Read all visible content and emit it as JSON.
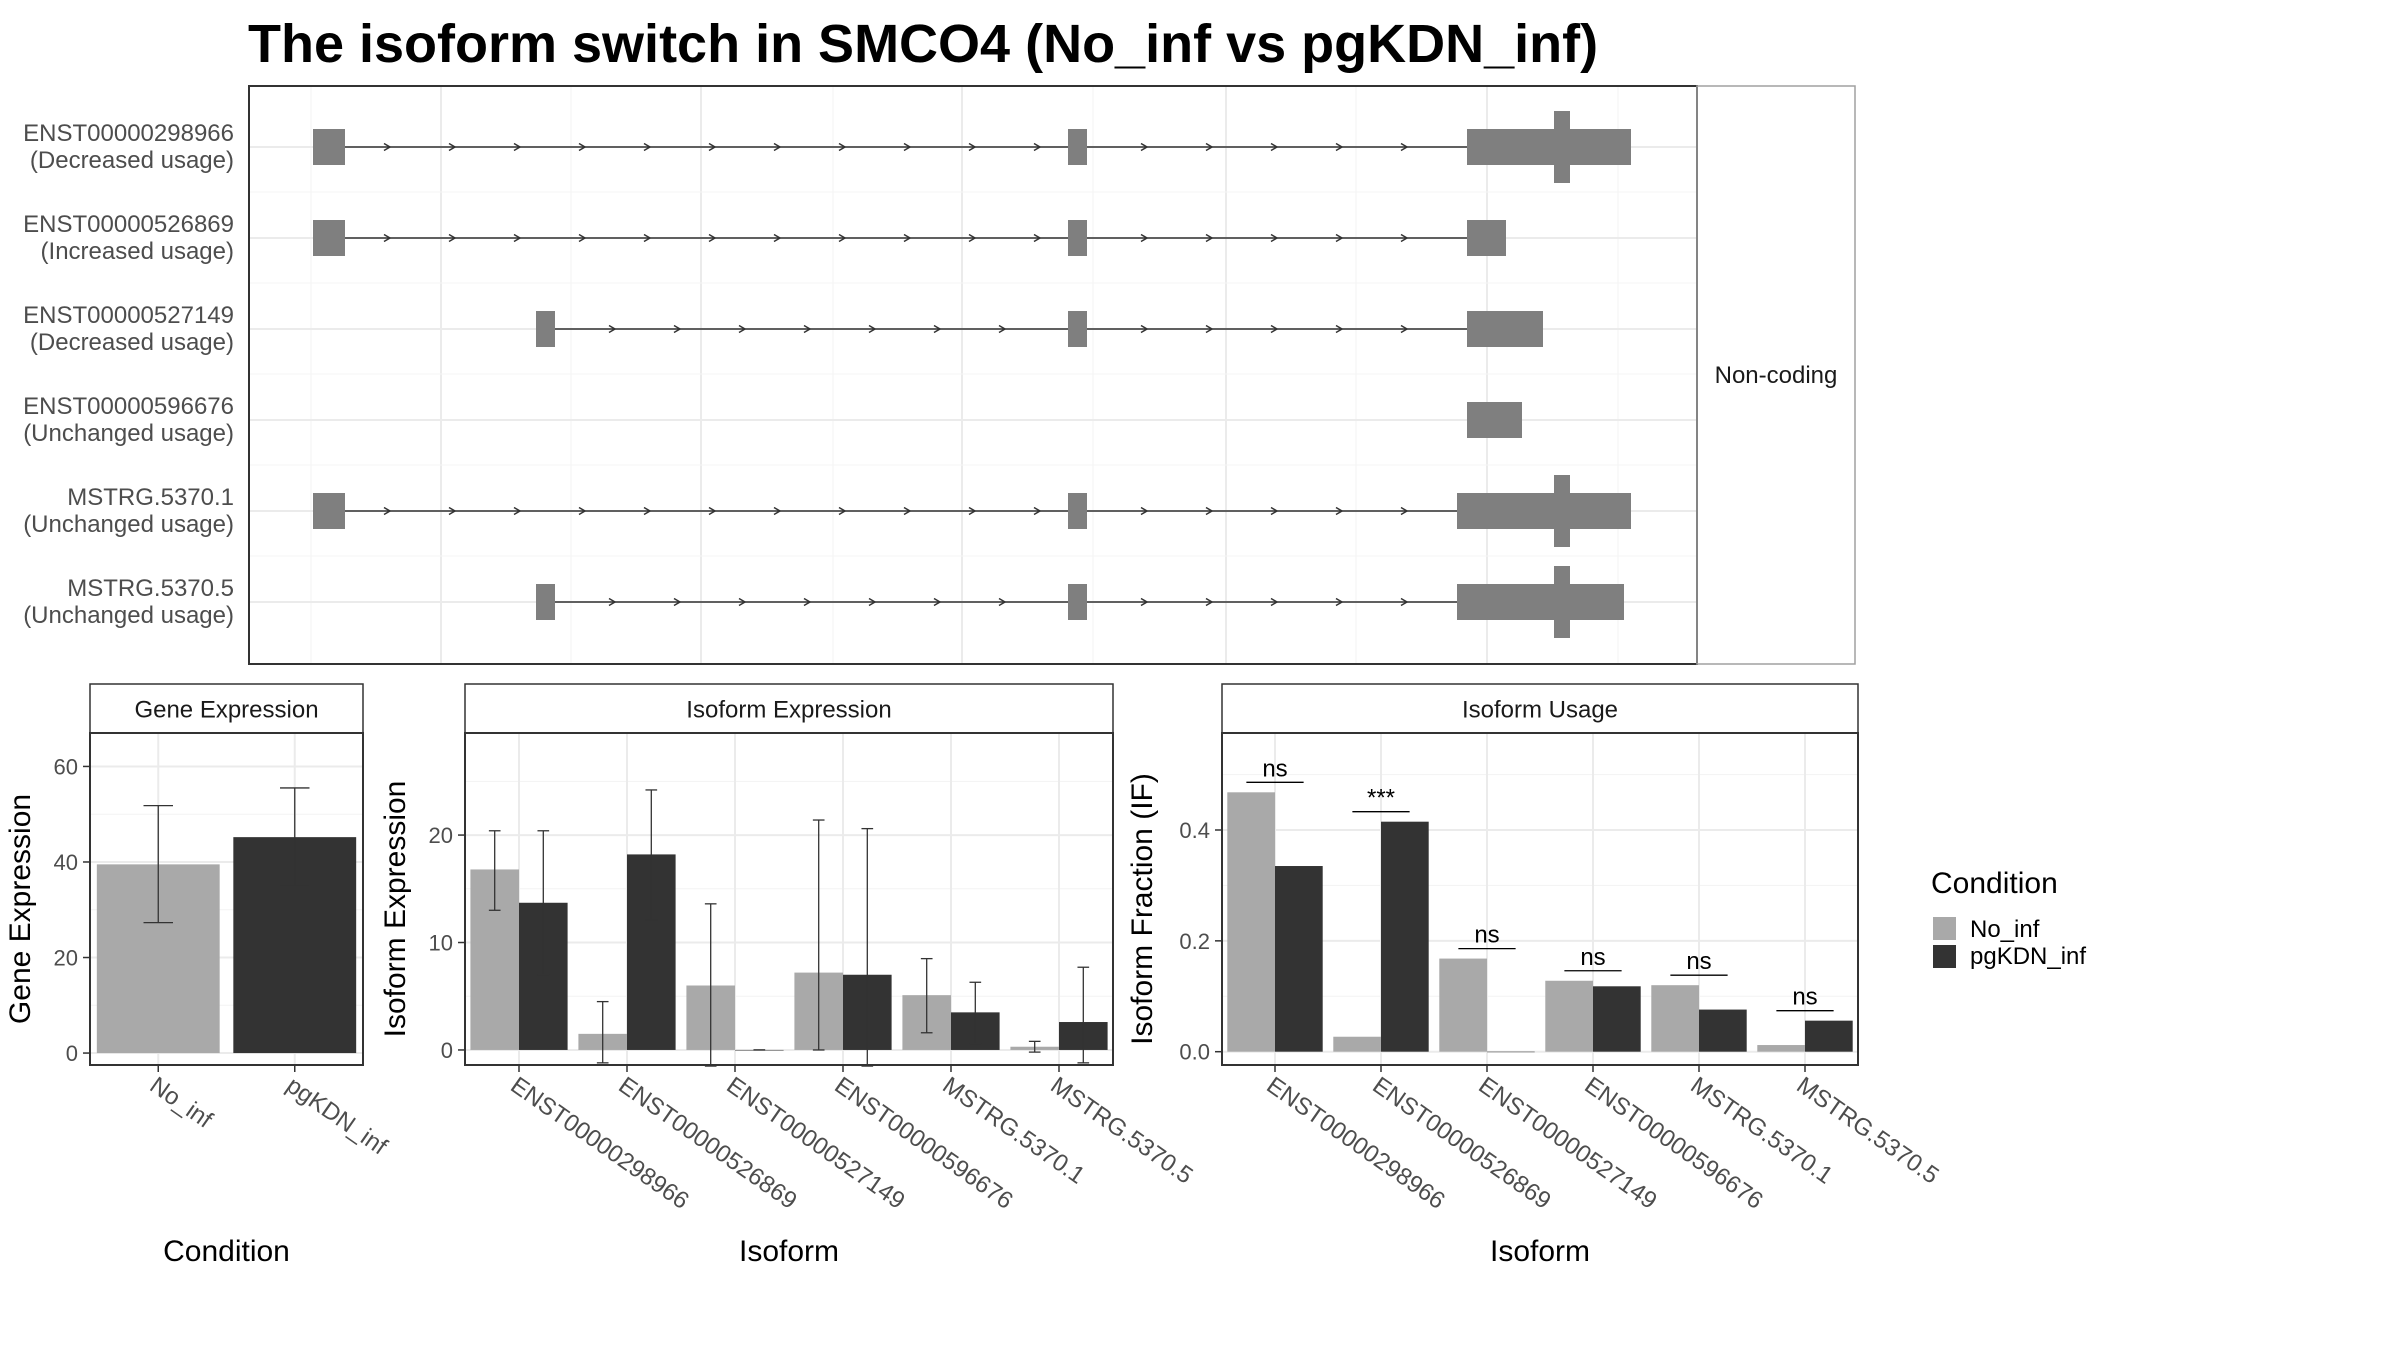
{
  "title": "The isoform switch in SMCO4 (No_inf vs pgKDN_inf)",
  "colors": {
    "No_inf": "#a9a9a9",
    "pgKDN_inf": "#333333",
    "exon": "#7f7f7f",
    "grid": "#ebebeb",
    "frame": "#333333"
  },
  "chart_data": [
    {
      "type": "gene-structure",
      "side_label": "Non-coding",
      "transcripts": [
        {
          "id": "ENST00000298966",
          "usage": "(Decreased usage)"
        },
        {
          "id": "ENST00000526869",
          "usage": "(Increased usage)"
        },
        {
          "id": "ENST00000527149",
          "usage": "(Decreased usage)"
        },
        {
          "id": "ENST00000596676",
          "usage": "(Unchanged usage)"
        },
        {
          "id": "MSTRG.5370.1",
          "usage": "(Unchanged usage)"
        },
        {
          "id": "MSTRG.5370.5",
          "usage": "(Unchanged usage)"
        }
      ]
    },
    {
      "type": "bar",
      "strip": "Gene Expression",
      "xlabel": "Condition",
      "ylabel": "Gene Expression",
      "categories": [
        "No_inf",
        "pgKDN_inf"
      ],
      "values": [
        39.5,
        45.2
      ],
      "err_low": [
        27.3,
        35.0
      ],
      "err_high": [
        51.8,
        55.5
      ],
      "yticks": [
        0,
        20,
        40,
        60
      ],
      "ylim": [
        -2.5,
        67
      ]
    },
    {
      "type": "bar",
      "strip": "Isoform Expression",
      "xlabel": "Isoform",
      "ylabel": "Isoform Expression",
      "categories": [
        "ENST00000298966",
        "ENST00000526869",
        "ENST00000527149",
        "ENST00000596676",
        "MSTRG.5370.1",
        "MSTRG.5370.5"
      ],
      "series": [
        {
          "name": "No_inf",
          "values": [
            16.8,
            1.5,
            6.0,
            7.2,
            5.1,
            0.3
          ],
          "err_low": [
            13.0,
            -1.2,
            -1.5,
            0.0,
            1.6,
            -0.2
          ],
          "err_high": [
            20.4,
            4.5,
            13.6,
            21.4,
            8.5,
            0.8
          ]
        },
        {
          "name": "pgKDN_inf",
          "values": [
            13.7,
            18.2,
            0.0,
            7.0,
            3.5,
            2.6
          ],
          "err_low": [
            7.0,
            12.1,
            0.0,
            -1.5,
            0.6,
            -1.2
          ],
          "err_high": [
            20.4,
            24.2,
            0.0,
            20.6,
            6.3,
            7.7
          ]
        }
      ],
      "yticks": [
        0,
        10,
        20
      ],
      "ylim": [
        -1.4,
        29.5
      ]
    },
    {
      "type": "bar",
      "strip": "Isoform Usage",
      "xlabel": "Isoform",
      "ylabel": "Isoform Fraction (IF)",
      "categories": [
        "ENST00000298966",
        "ENST00000526869",
        "ENST00000527149",
        "ENST00000596676",
        "MSTRG.5370.1",
        "MSTRG.5370.5"
      ],
      "series": [
        {
          "name": "No_inf",
          "values": [
            0.468,
            0.027,
            0.168,
            0.128,
            0.12,
            0.012
          ]
        },
        {
          "name": "pgKDN_inf",
          "values": [
            0.335,
            0.415,
            0.0,
            0.118,
            0.076,
            0.056
          ]
        }
      ],
      "significance": [
        "ns",
        "***",
        "ns",
        "ns",
        "ns",
        "ns"
      ],
      "yticks": [
        0.0,
        0.2,
        0.4
      ],
      "ytick_labels": [
        "0.0",
        "0.2",
        "0.4"
      ],
      "ylim": [
        -0.024,
        0.575
      ]
    }
  ],
  "legend": {
    "title": "Condition",
    "items": [
      "No_inf",
      "pgKDN_inf"
    ]
  }
}
